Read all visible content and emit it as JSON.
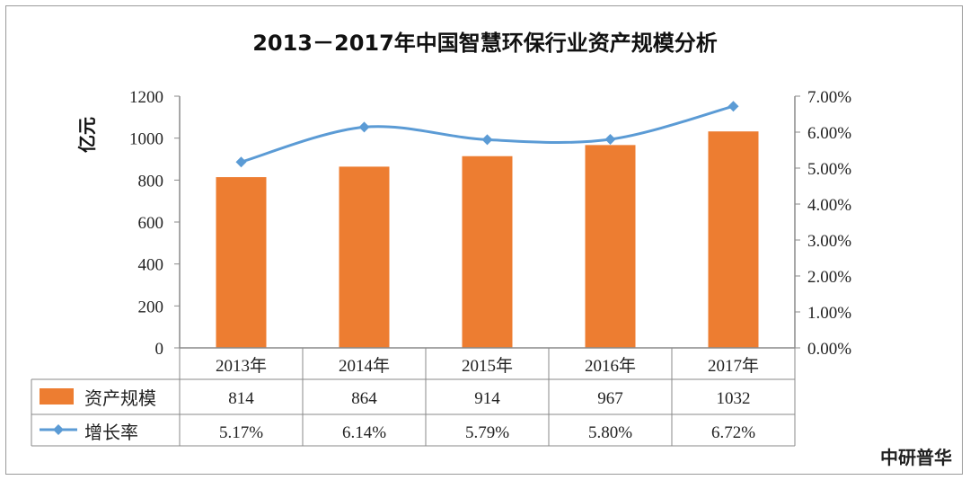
{
  "chart_data": {
    "type": "bar+line",
    "title": "2013－2017年中国智慧环保行业资产规模分析",
    "ylabel": "亿元",
    "categories": [
      "2013年",
      "2014年",
      "2015年",
      "2016年",
      "2017年"
    ],
    "ylim": [
      0,
      1200
    ],
    "y_ticks": [
      "0",
      "200",
      "400",
      "600",
      "800",
      "1000",
      "1200"
    ],
    "y2lim": [
      0,
      7
    ],
    "y2_ticks": [
      "0.00%",
      "1.00%",
      "2.00%",
      "3.00%",
      "4.00%",
      "5.00%",
      "6.00%",
      "7.00%"
    ],
    "grid": false,
    "series": [
      {
        "name": "资产规模",
        "type": "bar",
        "axis": "left",
        "values": [
          814,
          864,
          914,
          967,
          1032
        ],
        "labels": [
          "814",
          "864",
          "914",
          "967",
          "1032"
        ],
        "color": "#ED7D31"
      },
      {
        "name": "增长率",
        "type": "line",
        "axis": "right",
        "values": [
          5.17,
          6.14,
          5.79,
          5.8,
          6.72
        ],
        "labels": [
          "5.17%",
          "6.14%",
          "5.79%",
          "5.80%",
          "6.72%"
        ],
        "color": "#5B9BD5"
      }
    ],
    "legend": "data-table",
    "source": "中研普华"
  }
}
